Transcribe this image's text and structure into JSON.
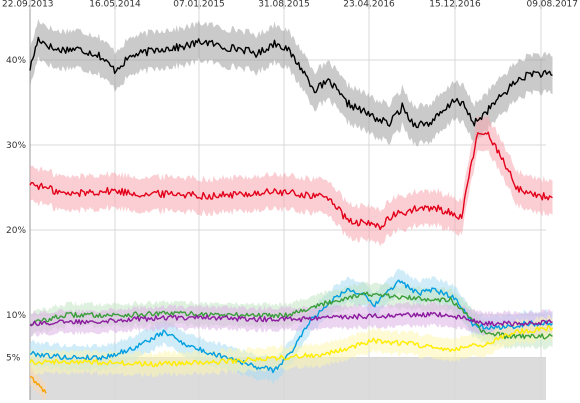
{
  "chart_data": {
    "type": "line",
    "title": "",
    "xlabel": "",
    "ylabel": "",
    "x_tick_labels": [
      "22.09.2013",
      "16.05.2014",
      "07.01.2015",
      "31.08.2015",
      "23.04.2016",
      "15.12.2016",
      "09.08.2017"
    ],
    "x_range": [
      "22.09.2013",
      "2017-09-15"
    ],
    "y_tick_labels": [
      "5%",
      "10%",
      "20%",
      "30%",
      "40%"
    ],
    "y_tick_values": [
      5,
      10,
      20,
      30,
      40
    ],
    "ylim": [
      0,
      46
    ],
    "grid": "vertical at x ticks; horizontal at y ticks",
    "legend": "none",
    "series": [
      {
        "color": "#000000",
        "band_color": "#9e9e9e",
        "band_width": 2.2,
        "points": [
          [
            "2013-09-22",
            39
          ],
          [
            "2013-10-15",
            42.5
          ],
          [
            "2013-12-01",
            41.2
          ],
          [
            "2014-02-01",
            41.3
          ],
          [
            "2014-04-01",
            40.6
          ],
          [
            "2014-05-15",
            38.8
          ],
          [
            "2014-07-01",
            40.5
          ],
          [
            "2014-09-15",
            41.3
          ],
          [
            "2014-11-15",
            41.5
          ],
          [
            "2015-01-15",
            42.2
          ],
          [
            "2015-03-15",
            41.5
          ],
          [
            "2015-05-01",
            41.3
          ],
          [
            "2015-06-15",
            40.7
          ],
          [
            "2015-08-01",
            42.0
          ],
          [
            "2015-09-01",
            41.5
          ],
          [
            "2015-10-15",
            39.0
          ],
          [
            "2015-11-20",
            36.5
          ],
          [
            "2016-01-01",
            37.5
          ],
          [
            "2016-02-15",
            35.0
          ],
          [
            "2016-04-01",
            34.0
          ],
          [
            "2016-05-15",
            33.0
          ],
          [
            "2016-06-15",
            32.5
          ],
          [
            "2016-07-20",
            34.5
          ],
          [
            "2016-08-20",
            32.5
          ],
          [
            "2016-10-01",
            32.5
          ],
          [
            "2016-11-15",
            34.0
          ],
          [
            "2016-12-15",
            35.5
          ],
          [
            "2017-01-10",
            34.5
          ],
          [
            "2017-02-01",
            32.5
          ],
          [
            "2017-03-01",
            33.5
          ],
          [
            "2017-04-15",
            35.5
          ],
          [
            "2017-06-01",
            37.5
          ],
          [
            "2017-07-15",
            38.5
          ],
          [
            "2017-09-10",
            38.2
          ]
        ]
      },
      {
        "color": "#e3001b",
        "band_color": "#f6a5ad",
        "band_width": 2.0,
        "points": [
          [
            "2013-09-22",
            25.5
          ],
          [
            "2013-11-01",
            25.0
          ],
          [
            "2014-01-01",
            24.2
          ],
          [
            "2014-03-15",
            24.5
          ],
          [
            "2014-05-15",
            24.6
          ],
          [
            "2014-08-01",
            24.2
          ],
          [
            "2014-11-01",
            24.3
          ],
          [
            "2015-02-01",
            24.0
          ],
          [
            "2015-05-01",
            24.2
          ],
          [
            "2015-08-01",
            24.5
          ],
          [
            "2015-10-15",
            24.2
          ],
          [
            "2016-01-01",
            23.8
          ],
          [
            "2016-02-20",
            21.0
          ],
          [
            "2016-04-01",
            20.8
          ],
          [
            "2016-05-20",
            20.5
          ],
          [
            "2016-07-01",
            21.8
          ],
          [
            "2016-09-01",
            22.5
          ],
          [
            "2016-11-01",
            22.5
          ],
          [
            "2017-01-01",
            21.5
          ],
          [
            "2017-01-25",
            27.0
          ],
          [
            "2017-02-15",
            31.5
          ],
          [
            "2017-03-20",
            31.0
          ],
          [
            "2017-04-30",
            28.0
          ],
          [
            "2017-06-01",
            25.0
          ],
          [
            "2017-07-15",
            24.2
          ],
          [
            "2017-09-10",
            23.8
          ]
        ]
      },
      {
        "color": "#009ee0",
        "band_color": "#a8dcf2",
        "band_width": 1.4,
        "points": [
          [
            "2013-09-22",
            5.5
          ],
          [
            "2014-01-01",
            5.0
          ],
          [
            "2014-04-15",
            5.0
          ],
          [
            "2014-07-01",
            6.0
          ],
          [
            "2014-10-01",
            8.0
          ],
          [
            "2014-12-01",
            6.5
          ],
          [
            "2015-02-01",
            5.5
          ],
          [
            "2015-04-01",
            5.0
          ],
          [
            "2015-06-01",
            4.0
          ],
          [
            "2015-08-01",
            3.5
          ],
          [
            "2015-09-15",
            5.5
          ],
          [
            "2015-11-01",
            9.0
          ],
          [
            "2016-01-01",
            11.5
          ],
          [
            "2016-02-15",
            13.0
          ],
          [
            "2016-04-01",
            12.5
          ],
          [
            "2016-05-01",
            11.0
          ],
          [
            "2016-06-15",
            13.0
          ],
          [
            "2016-07-15",
            14.0
          ],
          [
            "2016-09-01",
            12.5
          ],
          [
            "2016-10-15",
            13.0
          ],
          [
            "2016-12-15",
            12.0
          ],
          [
            "2017-02-01",
            9.0
          ],
          [
            "2017-03-15",
            8.5
          ],
          [
            "2017-05-01",
            8.5
          ],
          [
            "2017-07-01",
            9.0
          ],
          [
            "2017-09-10",
            9.0
          ]
        ]
      },
      {
        "color": "#3a9e3a",
        "band_color": "#c2e3c2",
        "band_width": 1.3,
        "points": [
          [
            "2013-09-22",
            9.0
          ],
          [
            "2014-01-01",
            10.0
          ],
          [
            "2014-06-01",
            10.0
          ],
          [
            "2014-11-01",
            10.2
          ],
          [
            "2015-04-01",
            10.0
          ],
          [
            "2015-09-01",
            10.0
          ],
          [
            "2016-01-01",
            11.5
          ],
          [
            "2016-04-01",
            12.5
          ],
          [
            "2016-08-01",
            12.0
          ],
          [
            "2016-12-01",
            11.8
          ],
          [
            "2017-01-15",
            10.0
          ],
          [
            "2017-03-01",
            8.0
          ],
          [
            "2017-05-01",
            7.5
          ],
          [
            "2017-09-10",
            7.5
          ]
        ]
      },
      {
        "color": "#8b1a9e",
        "band_color": "#dcb3e6",
        "band_width": 1.3,
        "points": [
          [
            "2013-09-22",
            9.0
          ],
          [
            "2014-02-01",
            9.2
          ],
          [
            "2014-07-01",
            9.5
          ],
          [
            "2015-01-01",
            9.8
          ],
          [
            "2015-06-01",
            9.5
          ],
          [
            "2015-10-01",
            9.5
          ],
          [
            "2016-03-01",
            9.8
          ],
          [
            "2016-08-01",
            10.0
          ],
          [
            "2016-12-01",
            10.0
          ],
          [
            "2017-03-01",
            9.0
          ],
          [
            "2017-06-01",
            9.0
          ],
          [
            "2017-09-10",
            9.2
          ]
        ]
      },
      {
        "color": "#ffed00",
        "band_color": "#fbf6b0",
        "band_width": 1.3,
        "points": [
          [
            "2013-09-22",
            4.5
          ],
          [
            "2014-03-01",
            4.5
          ],
          [
            "2014-09-01",
            4.2
          ],
          [
            "2015-03-01",
            4.5
          ],
          [
            "2015-09-01",
            5.0
          ],
          [
            "2016-01-01",
            5.5
          ],
          [
            "2016-05-01",
            7.0
          ],
          [
            "2016-09-01",
            6.5
          ],
          [
            "2016-12-01",
            6.0
          ],
          [
            "2017-03-01",
            6.5
          ],
          [
            "2017-06-01",
            8.0
          ],
          [
            "2017-09-10",
            8.5
          ]
        ]
      },
      {
        "color": "#f7a000",
        "band_color": "#fcd9b0",
        "band_width": 1.0,
        "points": [
          [
            "2013-09-22",
            2.8
          ],
          [
            "2013-10-20",
            1.5
          ],
          [
            "2013-11-05",
            0.8
          ]
        ]
      }
    ]
  },
  "theme": {
    "grid_color": "#d8d8d8",
    "text_color": "#333333",
    "background": "#ffffff",
    "lower_area_color": "#dcdcdc"
  }
}
